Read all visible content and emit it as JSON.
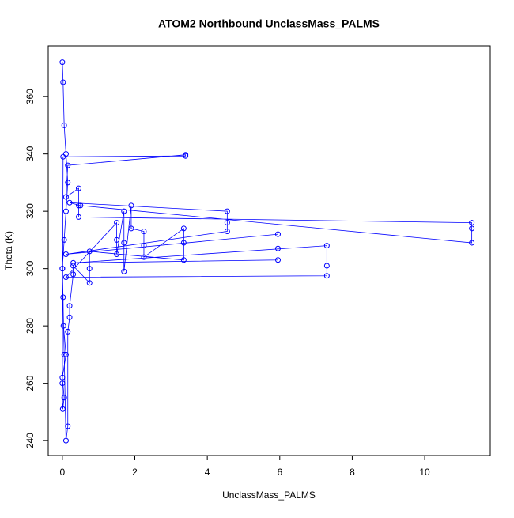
{
  "chart_data": {
    "type": "line",
    "title": "ATOM2 Northbound UnclassMass_PALMS",
    "x_label": "UnclassMass_PALMS",
    "y_label": "Theta (K)",
    "xlim": [
      -0.39,
      11.81
    ],
    "ylim": [
      234.8,
      377.7
    ],
    "xticks": [
      0,
      2,
      4,
      6,
      8,
      10
    ],
    "yticks": [
      240,
      260,
      280,
      300,
      320,
      340,
      360
    ],
    "series": [
      {
        "color": "#0000ff",
        "x": [
          0,
          0.02,
          0.05,
          0.1,
          0.15,
          0.1,
          0.05,
          0,
          0.02,
          0.03,
          0.1,
          0,
          0.05,
          0.01,
          0.0,
          0.02,
          3.4,
          3.4,
          0.15,
          0.1,
          0.45,
          0.45,
          0.45,
          11.3,
          11.3,
          11.3,
          0.5,
          0.2,
          4.55,
          4.55,
          4.55,
          0.1,
          5.95,
          5.95,
          5.95,
          0.3,
          7.3,
          7.3,
          7.3,
          0.1,
          1.5,
          1.5,
          1.5,
          1.7,
          1.7,
          1.7,
          1.9,
          1.9,
          2.25,
          2.25,
          2.25,
          3.35,
          3.35,
          3.35,
          0.75,
          0.75,
          0.75,
          0.3,
          0.3,
          0.2,
          0.2,
          0.15,
          0.15,
          0.1,
          0.05,
          0
        ],
        "values": [
          372,
          365,
          350,
          340,
          330,
          320,
          310,
          300,
          290,
          280,
          270,
          262,
          255,
          251,
          260,
          339,
          339.3,
          339.7,
          336,
          325,
          328,
          322,
          318,
          316,
          314,
          309,
          322,
          323,
          320,
          316,
          313,
          305,
          312,
          307,
          303,
          302,
          308,
          301,
          297.5,
          297,
          316,
          310,
          305,
          320,
          309,
          299,
          322,
          314,
          313,
          308,
          304,
          314,
          309,
          303,
          306,
          300,
          295,
          301,
          298,
          287,
          283,
          278,
          245,
          240,
          270,
          300
        ]
      }
    ]
  }
}
